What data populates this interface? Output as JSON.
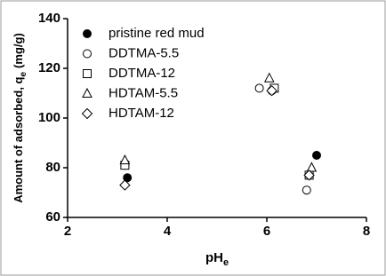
{
  "chart_data": {
    "type": "scatter",
    "x_label": "pH",
    "x_label_sub": "e",
    "y_label": "Amount of adsorbed, q",
    "y_label_sub": "e",
    "y_label_unit": "(mg/g)",
    "xlim": [
      2,
      8
    ],
    "xticks": [
      2,
      4,
      6,
      8
    ],
    "ylim": [
      60,
      140
    ],
    "yticks": [
      60,
      80,
      100,
      120,
      140
    ],
    "series": [
      {
        "name": "pristine red mud",
        "color": "#000000",
        "marker": "filled-circle",
        "x": [
          3.2,
          6.1,
          7.0
        ],
        "values": [
          76,
          111,
          85
        ]
      },
      {
        "name": "DDTMA-5.5",
        "color": "#000000",
        "marker": "circle",
        "x": [
          3.15,
          5.85,
          6.8
        ],
        "values": [
          81,
          112,
          71
        ]
      },
      {
        "name": "DDTMA-12",
        "color": "#000000",
        "marker": "square",
        "x": [
          3.15,
          6.15,
          6.85
        ],
        "values": [
          81,
          112,
          77
        ]
      },
      {
        "name": "HDTAM-5.5",
        "color": "#000000",
        "marker": "triangle",
        "x": [
          3.15,
          6.05,
          6.9
        ],
        "values": [
          83,
          116,
          80
        ]
      },
      {
        "name": "HDTAM-12",
        "color": "#000000",
        "marker": "diamond",
        "x": [
          3.15,
          6.1,
          6.85
        ],
        "values": [
          73,
          111,
          77
        ]
      }
    ]
  }
}
